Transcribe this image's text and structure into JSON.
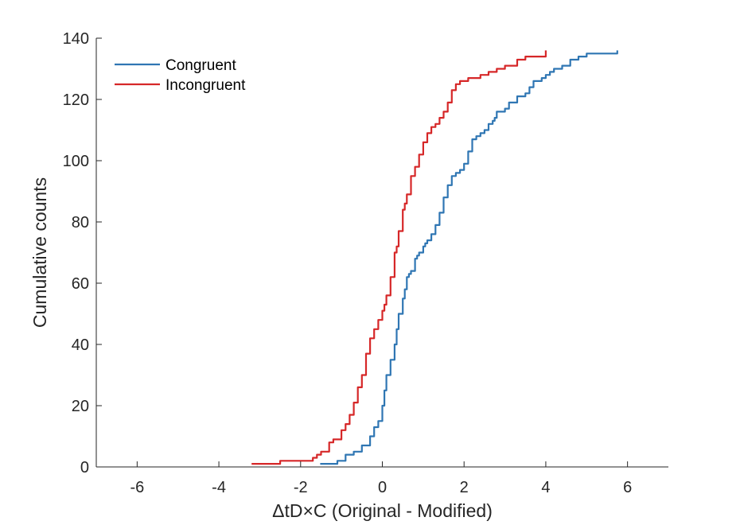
{
  "chart_data": {
    "type": "line",
    "title": "",
    "xlabel": "ΔtD×C (Original - Modified)",
    "ylabel": "Cumulative counts",
    "xlim": [
      -7,
      7
    ],
    "ylim": [
      0,
      140
    ],
    "xticks": [
      -6,
      -4,
      -2,
      0,
      2,
      4,
      6
    ],
    "yticks": [
      0,
      20,
      40,
      60,
      80,
      100,
      120,
      140
    ],
    "grid": false,
    "legend_position": "top-left",
    "series": [
      {
        "name": "Congruent",
        "color": "#2f76b3",
        "x": [
          -1.52,
          -1.25,
          -1.1,
          -0.9,
          -0.7,
          -0.5,
          -0.3,
          -0.2,
          -0.1,
          0.0,
          0.05,
          0.1,
          0.2,
          0.3,
          0.35,
          0.4,
          0.5,
          0.55,
          0.6,
          0.65,
          0.7,
          0.8,
          0.85,
          0.9,
          1.0,
          1.05,
          1.1,
          1.2,
          1.3,
          1.4,
          1.5,
          1.6,
          1.7,
          1.8,
          1.9,
          2.0,
          2.1,
          2.2,
          2.3,
          2.4,
          2.5,
          2.6,
          2.7,
          2.75,
          2.8,
          3.0,
          3.1,
          3.3,
          3.5,
          3.6,
          3.7,
          3.9,
          4.0,
          4.1,
          4.2,
          4.4,
          4.6,
          4.8,
          5.0,
          5.1,
          5.2,
          5.4,
          5.6,
          5.75
        ],
        "values": [
          1,
          1,
          2,
          4,
          5,
          7,
          10,
          13,
          15,
          20,
          25,
          30,
          35,
          40,
          45,
          50,
          55,
          58,
          62,
          63,
          64,
          68,
          69,
          70,
          72,
          73,
          74,
          76,
          79,
          83,
          88,
          92,
          95,
          96,
          97,
          99,
          103,
          107,
          108,
          109,
          110,
          112,
          113,
          114,
          116,
          117,
          119,
          121,
          122,
          124,
          126,
          127,
          128,
          129,
          130,
          131,
          133,
          134,
          135,
          135,
          135,
          135,
          135,
          136
        ]
      },
      {
        "name": "Incongruent",
        "color": "#d62728",
        "x": [
          -3.2,
          -2.6,
          -2.5,
          -1.8,
          -1.7,
          -1.6,
          -1.5,
          -1.3,
          -1.2,
          -1.0,
          -0.9,
          -0.8,
          -0.7,
          -0.6,
          -0.5,
          -0.4,
          -0.3,
          -0.2,
          -0.1,
          0.0,
          0.05,
          0.1,
          0.2,
          0.3,
          0.35,
          0.4,
          0.5,
          0.55,
          0.6,
          0.7,
          0.8,
          0.9,
          1.0,
          1.1,
          1.2,
          1.3,
          1.4,
          1.5,
          1.6,
          1.7,
          1.8,
          1.9,
          2.0,
          2.1,
          2.2,
          2.4,
          2.6,
          2.8,
          3.0,
          3.2,
          3.3,
          3.5,
          3.9,
          4.0
        ],
        "values": [
          1,
          1,
          2,
          2,
          3,
          4,
          5,
          8,
          9,
          12,
          14,
          17,
          21,
          26,
          30,
          37,
          42,
          45,
          48,
          51,
          53,
          56,
          62,
          70,
          72,
          77,
          84,
          86,
          89,
          95,
          98,
          102,
          106,
          109,
          111,
          112,
          114,
          116,
          119,
          123,
          125,
          126,
          126,
          127,
          127,
          128,
          129,
          130,
          131,
          131,
          133,
          134,
          134,
          136
        ]
      }
    ]
  }
}
